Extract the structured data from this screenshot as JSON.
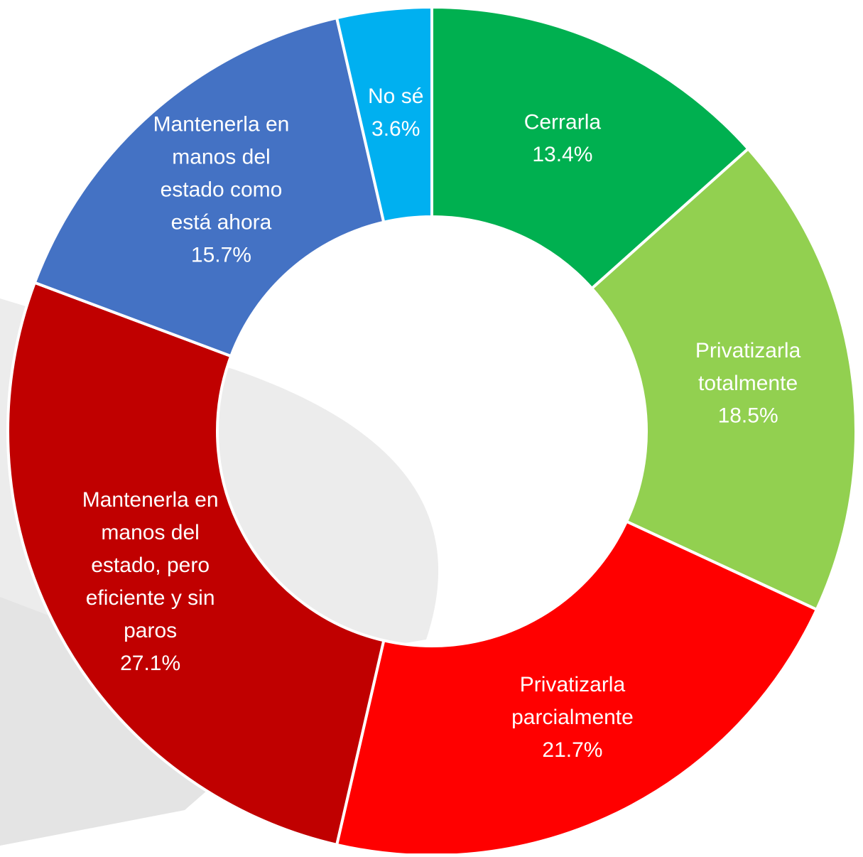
{
  "chart_data": {
    "type": "donut",
    "categories": [
      "Cerrarla",
      "Privatizarla totalmente",
      "Privatizarla parcialmente",
      "Mantenerla en manos del estado, pero eficiente y sin paros",
      "Mantenerla en manos del estado como está ahora",
      "No sé"
    ],
    "values": [
      13.4,
      18.5,
      21.7,
      27.1,
      15.7,
      3.6
    ],
    "value_labels": [
      "13.4%",
      "18.5%",
      "21.7%",
      "27.1%",
      "15.7%",
      "3.6%"
    ],
    "colors": [
      "#00b050",
      "#92d050",
      "#ff0000",
      "#c00000",
      "#4472c4",
      "#00b0f0"
    ]
  }
}
